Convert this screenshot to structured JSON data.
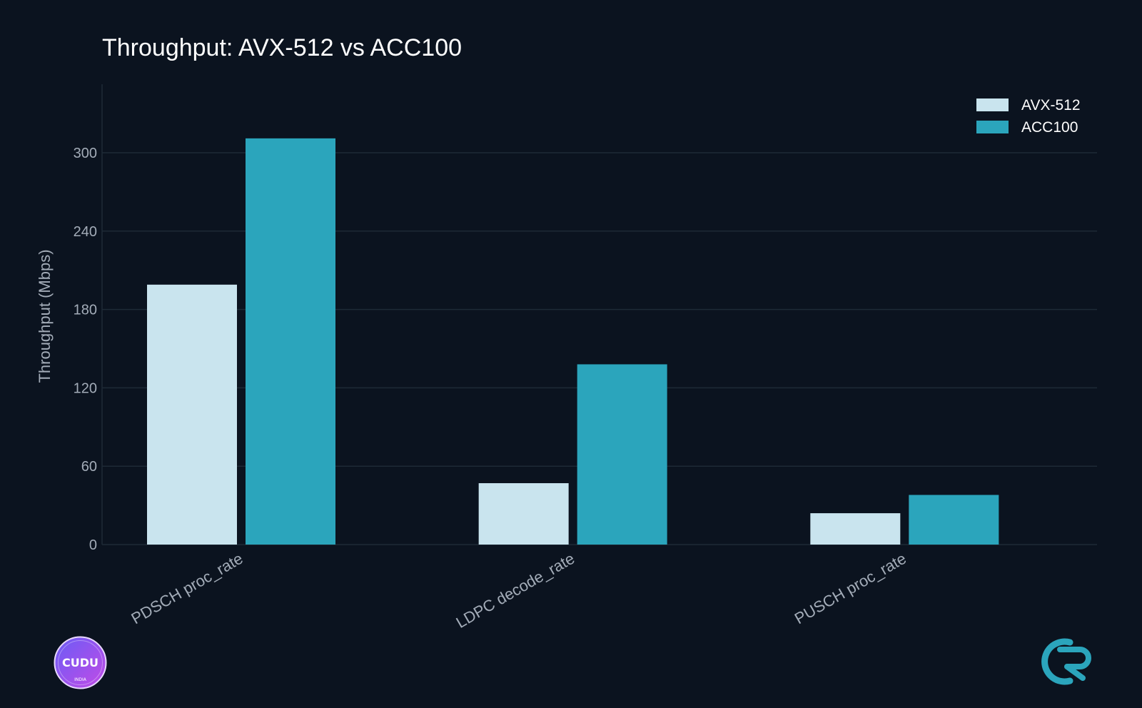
{
  "chart_data": {
    "type": "bar",
    "title": "Throughput: AVX-512 vs ACC100",
    "xlabel": "",
    "ylabel": "Throughput (Mbps)",
    "categories": [
      "PDSCH proc_rate",
      "LDPC decode_rate",
      "PUSCH proc_rate"
    ],
    "series": [
      {
        "name": "AVX-512",
        "color": "#c9e4ee",
        "values": [
          199,
          47,
          24
        ]
      },
      {
        "name": "ACC100",
        "color": "#2ba5bc",
        "values": [
          311,
          138,
          38
        ]
      }
    ],
    "ylim": [
      0,
      350
    ],
    "yticks": [
      0,
      60,
      120,
      180,
      240,
      300
    ],
    "grid": true,
    "legend_position": "top-right"
  },
  "logos": {
    "left_text": "CUDU",
    "left_subtext": "INDIA",
    "left_icon": "cudu-india-badge-logo",
    "right_icon": "cr-logo"
  },
  "colors": {
    "background": "#0b131f",
    "grid": "#1e2a36",
    "text_muted": "#a3acb8"
  }
}
